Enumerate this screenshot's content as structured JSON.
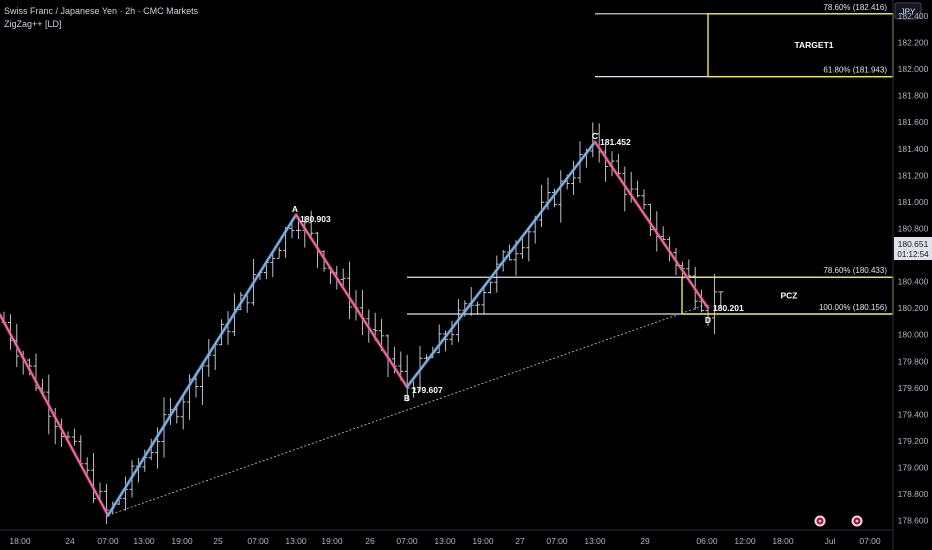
{
  "header": {
    "title": "Swiss Franc / Japanese Yen · 2h · CMC Markets",
    "indicator": "ZigZag++ [LD]"
  },
  "price_axis": {
    "currency": "JPY",
    "current_price": "180.651",
    "countdown": "01:12:54"
  },
  "chart_data": {
    "type": "candlestick",
    "y_ticks": [
      "178.600",
      "178.800",
      "179.000",
      "179.200",
      "179.400",
      "179.600",
      "179.800",
      "180.000",
      "180.200",
      "180.400",
      "180.600",
      "180.800",
      "181.000",
      "181.200",
      "181.400",
      "181.600",
      "181.800",
      "182.000",
      "182.200",
      "182.400"
    ],
    "ylim": [
      178.53,
      182.52
    ],
    "x_ticks": [
      "18:00",
      "24",
      "07:00",
      "13:00",
      "19:00",
      "25",
      "07:00",
      "13:00",
      "19:00",
      "26",
      "07:00",
      "13:00",
      "19:00",
      "27",
      "07:00",
      "13:00",
      "29",
      "06:00",
      "12:00",
      "18:00",
      "Jul",
      "07:00"
    ],
    "zigzag": [
      {
        "label": "",
        "price": 180.15
      },
      {
        "label": "",
        "price": 178.64
      },
      {
        "label": "A",
        "value_text": "180.903",
        "price": 180.903
      },
      {
        "label": "B",
        "value_text": "179.607",
        "price": 179.607
      },
      {
        "label": "C",
        "value_text": "181.452",
        "price": 181.452
      },
      {
        "label": "D",
        "value_text": "180.201",
        "price": 180.201
      }
    ],
    "levels": [
      {
        "text": "78.60% (182.416)",
        "price": 182.416
      },
      {
        "text": "61.80% (181.943)",
        "price": 181.943
      },
      {
        "text": "78.60% (180.433)",
        "price": 180.433
      },
      {
        "text": "100.00% (180.156)",
        "price": 180.156
      }
    ],
    "zones": [
      {
        "name": "TARGET1",
        "from": 181.943,
        "to": 182.416
      },
      {
        "name": "PCZ",
        "from": 180.156,
        "to": 180.433
      }
    ],
    "colors": {
      "bull_leg": "#5b9bd5",
      "bear_leg": "#e0407f",
      "zone": "#e8e85a",
      "candle": "#d1d4dc",
      "event": "#9c1b3c"
    }
  }
}
